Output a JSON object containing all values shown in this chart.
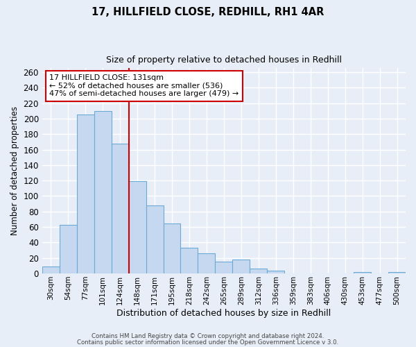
{
  "title1": "17, HILLFIELD CLOSE, REDHILL, RH1 4AR",
  "title2": "Size of property relative to detached houses in Redhill",
  "xlabel": "Distribution of detached houses by size in Redhill",
  "ylabel": "Number of detached properties",
  "footnote1": "Contains HM Land Registry data © Crown copyright and database right 2024.",
  "footnote2": "Contains public sector information licensed under the Open Government Licence v 3.0.",
  "bar_labels": [
    "30sqm",
    "54sqm",
    "77sqm",
    "101sqm",
    "124sqm",
    "148sqm",
    "171sqm",
    "195sqm",
    "218sqm",
    "242sqm",
    "265sqm",
    "289sqm",
    "312sqm",
    "336sqm",
    "359sqm",
    "383sqm",
    "406sqm",
    "430sqm",
    "453sqm",
    "477sqm",
    "500sqm"
  ],
  "bar_values": [
    9,
    63,
    205,
    210,
    168,
    119,
    88,
    65,
    33,
    26,
    15,
    18,
    6,
    4,
    0,
    0,
    0,
    0,
    2,
    0,
    2
  ],
  "bar_color": "#c5d8f0",
  "bar_edge_color": "#6aaad4",
  "annotation_title": "17 HILLFIELD CLOSE: 131sqm",
  "annotation_line1": "← 52% of detached houses are smaller (536)",
  "annotation_line2": "47% of semi-detached houses are larger (479) →",
  "vline_x": 4.5,
  "vline_color": "#cc0000",
  "annotation_box_color": "#ffffff",
  "annotation_box_edge": "#cc0000",
  "ylim": [
    0,
    265
  ],
  "yticks": [
    0,
    20,
    40,
    60,
    80,
    100,
    120,
    140,
    160,
    180,
    200,
    220,
    240,
    260
  ],
  "background_color": "#e8eef8",
  "grid_color": "#ffffff"
}
